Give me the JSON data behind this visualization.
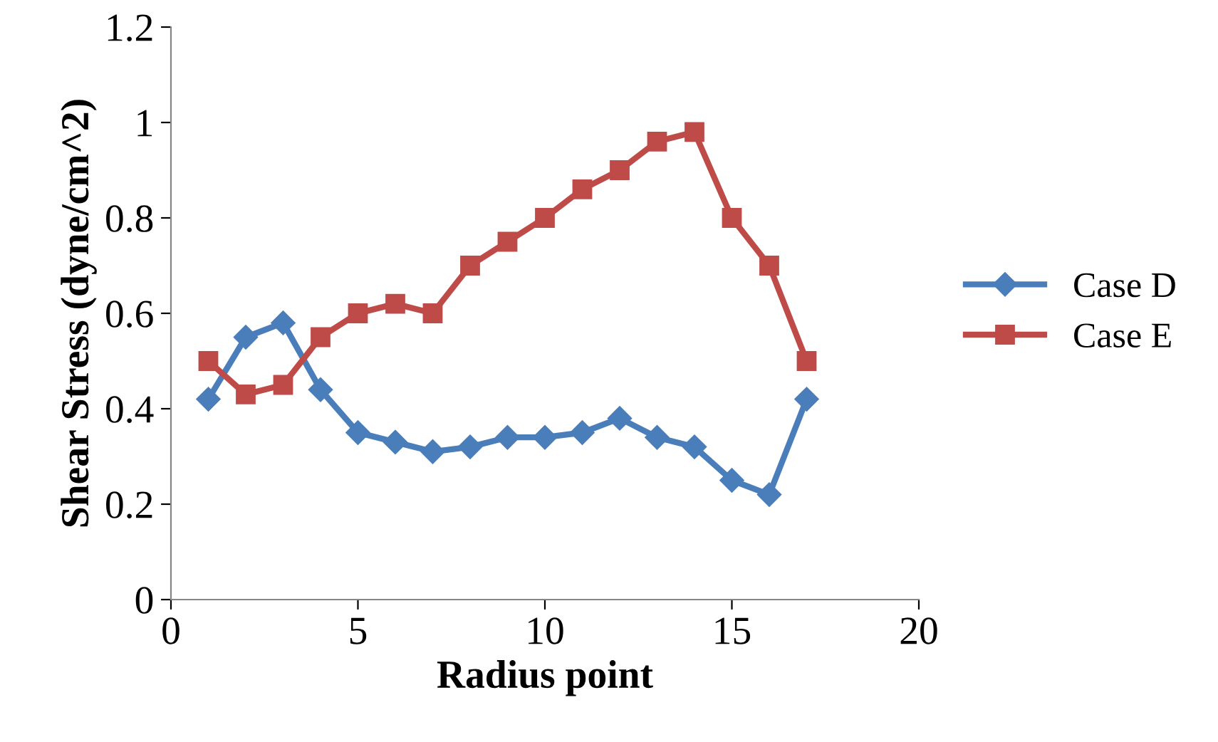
{
  "chart_data": {
    "type": "line",
    "xlabel": "Radius point",
    "ylabel": "Shear Stress (dyne/cm^2)",
    "x": [
      1,
      2,
      3,
      4,
      5,
      6,
      7,
      8,
      9,
      10,
      11,
      12,
      13,
      14,
      15,
      16,
      17
    ],
    "series": [
      {
        "name": "Case D",
        "color": "#4a7ebb",
        "marker": "diamond",
        "values": [
          0.42,
          0.55,
          0.58,
          0.44,
          0.35,
          0.33,
          0.31,
          0.32,
          0.34,
          0.34,
          0.35,
          0.38,
          0.34,
          0.32,
          0.25,
          0.22,
          0.42
        ]
      },
      {
        "name": "Case E",
        "color": "#be4b48",
        "marker": "square",
        "values": [
          0.5,
          0.43,
          0.45,
          0.55,
          0.6,
          0.62,
          0.6,
          0.7,
          0.75,
          0.8,
          0.86,
          0.9,
          0.96,
          0.98,
          0.8,
          0.7,
          0.5
        ]
      }
    ],
    "xlim": [
      0,
      20
    ],
    "xticks": [
      0,
      5,
      10,
      15,
      20
    ],
    "ylim": [
      0,
      1.2
    ],
    "yticks": [
      0,
      {
        "value": 0.2,
        "label": "0.2"
      },
      {
        "value": 0.4,
        "label": "0.4"
      },
      {
        "value": 0.6,
        "label": "0.6"
      },
      {
        "value": 0.8,
        "label": "0.8"
      },
      1,
      {
        "value": 1.2,
        "label": "1.2"
      }
    ],
    "grid": false,
    "legend": "right",
    "line_style": "solid"
  }
}
